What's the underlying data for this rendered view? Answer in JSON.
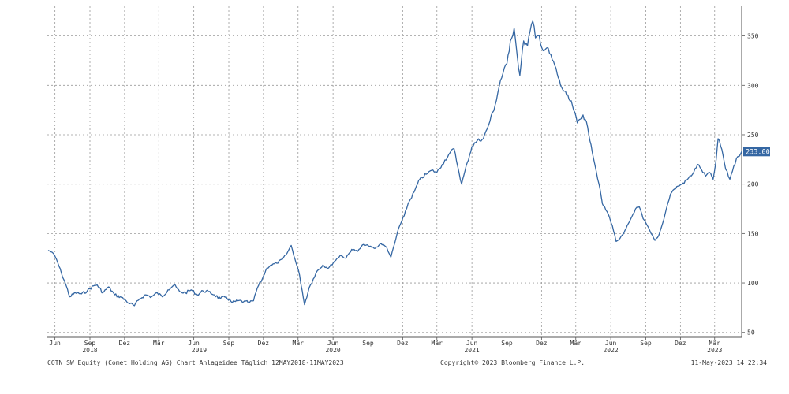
{
  "chart_data": {
    "type": "line",
    "title": "COTN SW Equity (Comet Holding AG) Chart Anlageidee  Täglich 12MAY2018-11MAY2023",
    "xlabel": "",
    "ylabel": "",
    "x_range": [
      "2018-05-12",
      "2023-05-11"
    ],
    "ylim": [
      45,
      380
    ],
    "y_ticks": [
      50,
      100,
      150,
      200,
      250,
      300,
      350
    ],
    "grid": true,
    "x_ticks": [
      {
        "date": "2018-06-01",
        "label": "Jun"
      },
      {
        "date": "2018-09-01",
        "label": "Sep"
      },
      {
        "date": "2018-12-01",
        "label": "Dez"
      },
      {
        "date": "2019-03-01",
        "label": "Mär"
      },
      {
        "date": "2019-06-01",
        "label": "Jun"
      },
      {
        "date": "2019-09-01",
        "label": "Sep"
      },
      {
        "date": "2019-12-01",
        "label": "Dez"
      },
      {
        "date": "2020-03-01",
        "label": "Mär"
      },
      {
        "date": "2020-06-01",
        "label": "Jun"
      },
      {
        "date": "2020-09-01",
        "label": "Sep"
      },
      {
        "date": "2020-12-01",
        "label": "Dez"
      },
      {
        "date": "2021-03-01",
        "label": "Mär"
      },
      {
        "date": "2021-06-01",
        "label": "Jun"
      },
      {
        "date": "2021-09-01",
        "label": "Sep"
      },
      {
        "date": "2021-12-01",
        "label": "Dez"
      },
      {
        "date": "2022-03-01",
        "label": "Mär"
      },
      {
        "date": "2022-06-01",
        "label": "Jun"
      },
      {
        "date": "2022-09-01",
        "label": "Sep"
      },
      {
        "date": "2022-12-01",
        "label": "Dez"
      },
      {
        "date": "2023-03-01",
        "label": "Mär"
      }
    ],
    "year_labels": [
      {
        "date": "2018-09-01",
        "label": "2018"
      },
      {
        "date": "2019-06-15",
        "label": "2019"
      },
      {
        "date": "2020-06-01",
        "label": "2020"
      },
      {
        "date": "2021-06-01",
        "label": "2021"
      },
      {
        "date": "2022-06-01",
        "label": "2022"
      },
      {
        "date": "2023-03-01",
        "label": "2023"
      }
    ],
    "series": [
      {
        "name": "COTN SW Equity",
        "color": "#3567a3",
        "last_value": "233.00",
        "points": [
          [
            "2018-05-14",
            133
          ],
          [
            "2018-05-25",
            131
          ],
          [
            "2018-06-05",
            124
          ],
          [
            "2018-06-18",
            110
          ],
          [
            "2018-06-28",
            100
          ],
          [
            "2018-07-10",
            86
          ],
          [
            "2018-07-25",
            90
          ],
          [
            "2018-08-10",
            89
          ],
          [
            "2018-08-25",
            92
          ],
          [
            "2018-09-10",
            97
          ],
          [
            "2018-09-20",
            98
          ],
          [
            "2018-10-05",
            90
          ],
          [
            "2018-10-20",
            96
          ],
          [
            "2018-11-05",
            88
          ],
          [
            "2018-11-20",
            86
          ],
          [
            "2018-12-05",
            82
          ],
          [
            "2018-12-15",
            79
          ],
          [
            "2018-12-27",
            77
          ],
          [
            "2019-01-10",
            84
          ],
          [
            "2019-01-25",
            88
          ],
          [
            "2019-02-10",
            86
          ],
          [
            "2019-02-25",
            90
          ],
          [
            "2019-03-10",
            86
          ],
          [
            "2019-03-25",
            93
          ],
          [
            "2019-04-10",
            98
          ],
          [
            "2019-04-25",
            91
          ],
          [
            "2019-05-10",
            90
          ],
          [
            "2019-05-25",
            93
          ],
          [
            "2019-06-10",
            88
          ],
          [
            "2019-06-25",
            92
          ],
          [
            "2019-07-10",
            91
          ],
          [
            "2019-07-25",
            88
          ],
          [
            "2019-08-10",
            84
          ],
          [
            "2019-08-25",
            86
          ],
          [
            "2019-09-10",
            80
          ],
          [
            "2019-09-25",
            82
          ],
          [
            "2019-10-10",
            81
          ],
          [
            "2019-10-25",
            80
          ],
          [
            "2019-11-05",
            82
          ],
          [
            "2019-11-15",
            95
          ],
          [
            "2019-11-28",
            104
          ],
          [
            "2019-12-10",
            115
          ],
          [
            "2019-12-20",
            118
          ],
          [
            "2020-01-05",
            120
          ],
          [
            "2020-01-20",
            124
          ],
          [
            "2020-02-01",
            130
          ],
          [
            "2020-02-12",
            138
          ],
          [
            "2020-02-22",
            124
          ],
          [
            "2020-03-05",
            108
          ],
          [
            "2020-03-12",
            92
          ],
          [
            "2020-03-18",
            78
          ],
          [
            "2020-03-30",
            95
          ],
          [
            "2020-04-10",
            104
          ],
          [
            "2020-04-20",
            112
          ],
          [
            "2020-05-05",
            118
          ],
          [
            "2020-05-20",
            115
          ],
          [
            "2020-06-05",
            122
          ],
          [
            "2020-06-20",
            128
          ],
          [
            "2020-07-05",
            125
          ],
          [
            "2020-07-20",
            134
          ],
          [
            "2020-08-05",
            132
          ],
          [
            "2020-08-20",
            139
          ],
          [
            "2020-09-05",
            137
          ],
          [
            "2020-09-20",
            135
          ],
          [
            "2020-10-05",
            140
          ],
          [
            "2020-10-20",
            136
          ],
          [
            "2020-10-31",
            126
          ],
          [
            "2020-11-10",
            140
          ],
          [
            "2020-11-20",
            155
          ],
          [
            "2020-12-05",
            168
          ],
          [
            "2020-12-15",
            180
          ],
          [
            "2020-12-31",
            192
          ],
          [
            "2021-01-15",
            205
          ],
          [
            "2021-02-01",
            210
          ],
          [
            "2021-02-15",
            214
          ],
          [
            "2021-03-01",
            212
          ],
          [
            "2021-03-15",
            220
          ],
          [
            "2021-04-01",
            230
          ],
          [
            "2021-04-15",
            236
          ],
          [
            "2021-04-28",
            212
          ],
          [
            "2021-05-05",
            200
          ],
          [
            "2021-05-20",
            222
          ],
          [
            "2021-06-01",
            238
          ],
          [
            "2021-06-15",
            244
          ],
          [
            "2021-07-01",
            246
          ],
          [
            "2021-07-15",
            260
          ],
          [
            "2021-08-01",
            280
          ],
          [
            "2021-08-15",
            305
          ],
          [
            "2021-09-01",
            322
          ],
          [
            "2021-09-10",
            345
          ],
          [
            "2021-09-20",
            358
          ],
          [
            "2021-09-28",
            330
          ],
          [
            "2021-10-05",
            310
          ],
          [
            "2021-10-15",
            345
          ],
          [
            "2021-10-25",
            340
          ],
          [
            "2021-11-01",
            355
          ],
          [
            "2021-11-08",
            365
          ],
          [
            "2021-11-15",
            348
          ],
          [
            "2021-11-25",
            350
          ],
          [
            "2021-12-05",
            335
          ],
          [
            "2021-12-15",
            338
          ],
          [
            "2022-01-05",
            320
          ],
          [
            "2022-01-20",
            300
          ],
          [
            "2022-02-05",
            290
          ],
          [
            "2022-02-20",
            280
          ],
          [
            "2022-03-05",
            262
          ],
          [
            "2022-03-20",
            270
          ],
          [
            "2022-04-01",
            258
          ],
          [
            "2022-04-10",
            240
          ],
          [
            "2022-04-20",
            220
          ],
          [
            "2022-05-01",
            200
          ],
          [
            "2022-05-10",
            180
          ],
          [
            "2022-05-25",
            170
          ],
          [
            "2022-06-05",
            158
          ],
          [
            "2022-06-15",
            142
          ],
          [
            "2022-06-25",
            145
          ],
          [
            "2022-07-05",
            150
          ],
          [
            "2022-07-20",
            162
          ],
          [
            "2022-08-05",
            175
          ],
          [
            "2022-08-15",
            177
          ],
          [
            "2022-08-25",
            165
          ],
          [
            "2022-09-05",
            158
          ],
          [
            "2022-09-15",
            150
          ],
          [
            "2022-09-25",
            143
          ],
          [
            "2022-10-05",
            148
          ],
          [
            "2022-10-15",
            160
          ],
          [
            "2022-10-25",
            175
          ],
          [
            "2022-11-05",
            190
          ],
          [
            "2022-11-15",
            195
          ],
          [
            "2022-11-25",
            198
          ],
          [
            "2022-12-05",
            200
          ],
          [
            "2022-12-20",
            205
          ],
          [
            "2023-01-05",
            212
          ],
          [
            "2023-01-15",
            220
          ],
          [
            "2023-01-25",
            215
          ],
          [
            "2023-02-05",
            208
          ],
          [
            "2023-02-15",
            212
          ],
          [
            "2023-02-25",
            205
          ],
          [
            "2023-03-05",
            225
          ],
          [
            "2023-03-10",
            246
          ],
          [
            "2023-03-20",
            235
          ],
          [
            "2023-03-30",
            215
          ],
          [
            "2023-04-10",
            205
          ],
          [
            "2023-04-20",
            218
          ],
          [
            "2023-05-01",
            228
          ],
          [
            "2023-05-11",
            233
          ]
        ]
      }
    ]
  },
  "footer": {
    "left": "COTN SW Equity (Comet Holding AG) Chart Anlageidee  Täglich 12MAY2018-11MAY2023",
    "center": "Copyright© 2023 Bloomberg Finance L.P.",
    "right": "11-May-2023 14:22:34"
  }
}
